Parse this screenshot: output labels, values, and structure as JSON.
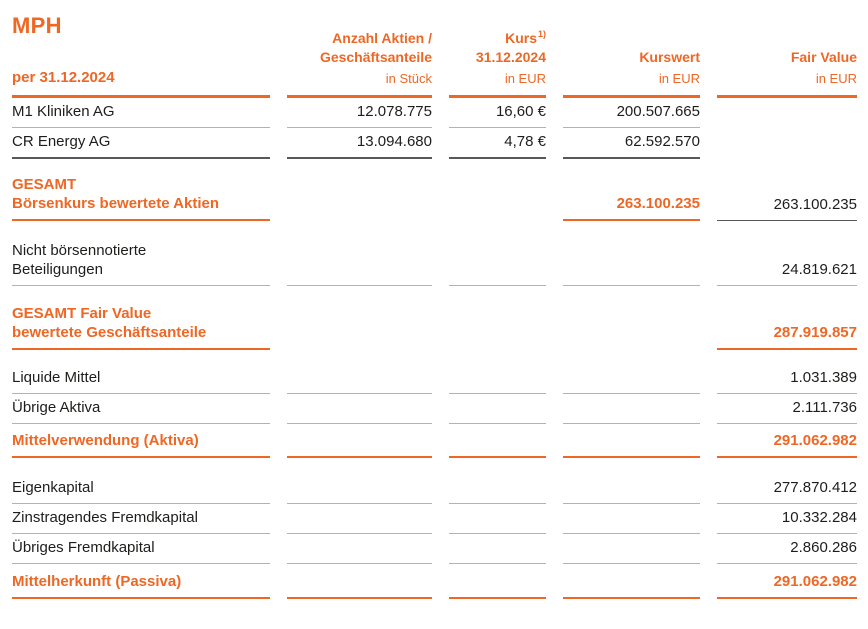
{
  "document": {
    "title": "MPH",
    "date_label": "per 31.12.2024"
  },
  "columns": {
    "shares": {
      "line1": "Anzahl Aktien /",
      "line2": "Geschäftsanteile",
      "unit": "in Stück"
    },
    "price": {
      "line1": "Kurs",
      "footnote": "1)",
      "line2": "31.12.2024",
      "unit": "in EUR"
    },
    "kurswert": {
      "label": "Kurswert",
      "unit": "in EUR"
    },
    "fair_value": {
      "label": "Fair Value",
      "unit": "in EUR"
    }
  },
  "rows": [
    {
      "label": "M1 Kliniken AG",
      "shares": "12.078.775",
      "price": "16,60 €",
      "kurswert": "200.507.665",
      "fair_value": ""
    },
    {
      "label": "CR Energy AG",
      "shares": "13.094.680",
      "price": "4,78 €",
      "kurswert": "62.592.570",
      "fair_value": ""
    },
    {
      "label": "GESAMT",
      "label2": "Börsenkurs bewertete Aktien",
      "shares": "",
      "price": "",
      "kurswert": "263.100.235",
      "fair_value": "263.100.235"
    },
    {
      "label": "Nicht börsennotierte",
      "label2": "Beteiligungen",
      "shares": "",
      "price": "",
      "kurswert": "",
      "fair_value": "24.819.621"
    },
    {
      "label": "GESAMT Fair Value",
      "label2": "bewertete Geschäftsanteile",
      "shares": "",
      "price": "",
      "kurswert": "",
      "fair_value": "287.919.857"
    },
    {
      "label": "Liquide Mittel",
      "shares": "",
      "price": "",
      "kurswert": "",
      "fair_value": "1.031.389"
    },
    {
      "label": "Übrige Aktiva",
      "shares": "",
      "price": "",
      "kurswert": "",
      "fair_value": "2.111.736"
    },
    {
      "label": "Mittelverwendung (Aktiva)",
      "shares": "",
      "price": "",
      "kurswert": "",
      "fair_value": "291.062.982"
    },
    {
      "label": "Eigenkapital",
      "shares": "",
      "price": "",
      "kurswert": "",
      "fair_value": "277.870.412"
    },
    {
      "label": "Zinstragendes Fremdkapital",
      "shares": "",
      "price": "",
      "kurswert": "",
      "fair_value": "10.332.284"
    },
    {
      "label": "Übriges Fremdkapital",
      "shares": "",
      "price": "",
      "kurswert": "",
      "fair_value": "2.860.286"
    },
    {
      "label": "Mittelherkunft (Passiva)",
      "shares": "",
      "price": "",
      "kurswert": "",
      "fair_value": "291.062.982"
    }
  ],
  "colors": {
    "accent": "#ee6725",
    "grid_gray": "#b2b2b2",
    "sum_line": "#58585a",
    "text": "#1d1d1b"
  }
}
